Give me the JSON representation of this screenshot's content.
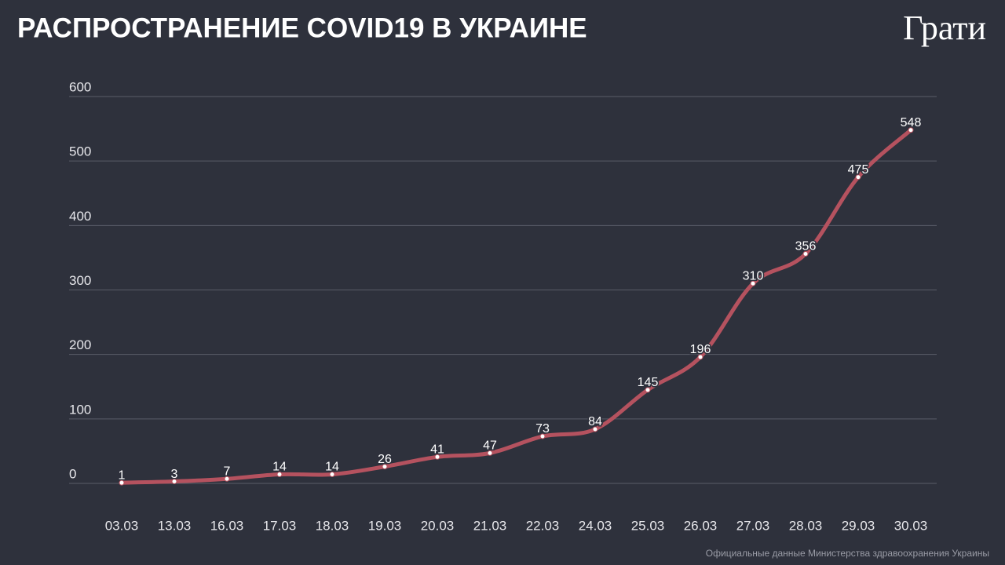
{
  "chart_data": {
    "type": "line",
    "title": "РАСПРОСТРАНЕНИЕ COVID19 В УКРАИНЕ",
    "logo": "Грати",
    "source": "Официальные данные Министерства здравоохранения Украины",
    "categories": [
      "03.03",
      "13.03",
      "16.03",
      "17.03",
      "18.03",
      "19.03",
      "20.03",
      "21.03",
      "22.03",
      "24.03",
      "25.03",
      "26.03",
      "27.03",
      "28.03",
      "29.03",
      "30.03"
    ],
    "values": [
      1,
      3,
      7,
      14,
      14,
      26,
      41,
      47,
      73,
      84,
      145,
      196,
      310,
      356,
      475,
      548
    ],
    "color": "#b5525f",
    "ylim": [
      0,
      600
    ],
    "yticks": [
      0,
      100,
      200,
      300,
      400,
      500,
      600
    ],
    "grid": true
  }
}
